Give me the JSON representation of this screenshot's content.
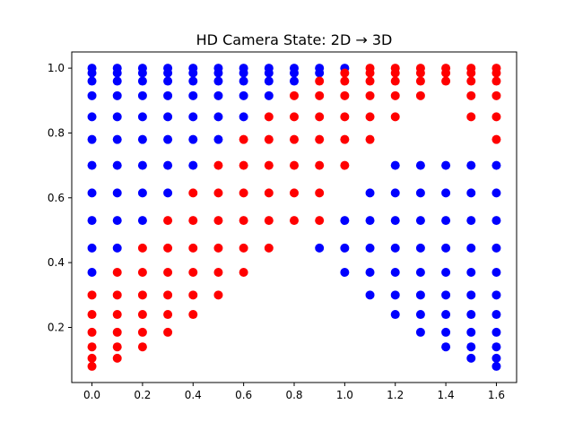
{
  "chart_data": {
    "type": "scatter",
    "title": "HD Camera State: 2D → 3D",
    "xlabel": "",
    "ylabel": "",
    "xlim": [
      -0.08,
      1.68
    ],
    "ylim": [
      0.03,
      1.05
    ],
    "grid": false,
    "xticks": [
      "0.0",
      "0.2",
      "0.4",
      "0.6",
      "0.8",
      "1.0",
      "1.2",
      "1.4",
      "1.6"
    ],
    "yticks": [
      "0.2",
      "0.4",
      "0.6",
      "0.8",
      "1.0"
    ],
    "colors": {
      "blue": "#0000ff",
      "red": "#ff0000"
    },
    "series": [
      {
        "color": "blue",
        "points": [
          [
            0.0,
            1.0
          ],
          [
            0.0,
            0.985
          ],
          [
            0.0,
            0.96
          ],
          [
            0.0,
            0.915
          ],
          [
            0.0,
            0.85
          ],
          [
            0.0,
            0.78
          ],
          [
            0.0,
            0.7
          ],
          [
            0.0,
            0.615
          ],
          [
            0.0,
            0.53
          ],
          [
            0.0,
            0.445
          ],
          [
            0.0,
            0.37
          ],
          [
            0.1,
            1.0
          ],
          [
            0.1,
            0.985
          ],
          [
            0.1,
            0.96
          ],
          [
            0.1,
            0.915
          ],
          [
            0.1,
            0.85
          ],
          [
            0.1,
            0.78
          ],
          [
            0.1,
            0.7
          ],
          [
            0.1,
            0.615
          ],
          [
            0.1,
            0.53
          ],
          [
            0.1,
            0.445
          ],
          [
            0.2,
            1.0
          ],
          [
            0.2,
            0.985
          ],
          [
            0.2,
            0.96
          ],
          [
            0.2,
            0.915
          ],
          [
            0.2,
            0.85
          ],
          [
            0.2,
            0.78
          ],
          [
            0.2,
            0.7
          ],
          [
            0.2,
            0.615
          ],
          [
            0.2,
            0.53
          ],
          [
            0.3,
            1.0
          ],
          [
            0.3,
            0.985
          ],
          [
            0.3,
            0.96
          ],
          [
            0.3,
            0.915
          ],
          [
            0.3,
            0.85
          ],
          [
            0.3,
            0.78
          ],
          [
            0.3,
            0.7
          ],
          [
            0.3,
            0.615
          ],
          [
            0.4,
            1.0
          ],
          [
            0.4,
            0.985
          ],
          [
            0.4,
            0.96
          ],
          [
            0.4,
            0.915
          ],
          [
            0.4,
            0.85
          ],
          [
            0.4,
            0.78
          ],
          [
            0.4,
            0.7
          ],
          [
            0.5,
            1.0
          ],
          [
            0.5,
            0.985
          ],
          [
            0.5,
            0.96
          ],
          [
            0.5,
            0.915
          ],
          [
            0.5,
            0.85
          ],
          [
            0.5,
            0.78
          ],
          [
            0.6,
            1.0
          ],
          [
            0.6,
            0.985
          ],
          [
            0.6,
            0.96
          ],
          [
            0.6,
            0.915
          ],
          [
            0.6,
            0.85
          ],
          [
            0.7,
            1.0
          ],
          [
            0.7,
            0.985
          ],
          [
            0.7,
            0.96
          ],
          [
            0.7,
            0.915
          ],
          [
            0.8,
            1.0
          ],
          [
            0.8,
            0.985
          ],
          [
            0.8,
            0.96
          ],
          [
            0.9,
            1.0
          ],
          [
            0.9,
            0.985
          ],
          [
            0.9,
            0.445
          ],
          [
            1.0,
            1.0
          ],
          [
            1.0,
            0.53
          ],
          [
            1.0,
            0.445
          ],
          [
            1.0,
            0.37
          ],
          [
            1.1,
            0.615
          ],
          [
            1.1,
            0.53
          ],
          [
            1.1,
            0.445
          ],
          [
            1.1,
            0.37
          ],
          [
            1.1,
            0.3
          ],
          [
            1.2,
            0.7
          ],
          [
            1.2,
            0.615
          ],
          [
            1.2,
            0.53
          ],
          [
            1.2,
            0.445
          ],
          [
            1.2,
            0.37
          ],
          [
            1.2,
            0.3
          ],
          [
            1.2,
            0.24
          ],
          [
            1.3,
            0.7
          ],
          [
            1.3,
            0.615
          ],
          [
            1.3,
            0.53
          ],
          [
            1.3,
            0.445
          ],
          [
            1.3,
            0.37
          ],
          [
            1.3,
            0.3
          ],
          [
            1.3,
            0.24
          ],
          [
            1.3,
            0.185
          ],
          [
            1.4,
            0.7
          ],
          [
            1.4,
            0.615
          ],
          [
            1.4,
            0.53
          ],
          [
            1.4,
            0.445
          ],
          [
            1.4,
            0.37
          ],
          [
            1.4,
            0.3
          ],
          [
            1.4,
            0.24
          ],
          [
            1.4,
            0.185
          ],
          [
            1.4,
            0.14
          ],
          [
            1.5,
            0.7
          ],
          [
            1.5,
            0.615
          ],
          [
            1.5,
            0.53
          ],
          [
            1.5,
            0.445
          ],
          [
            1.5,
            0.37
          ],
          [
            1.5,
            0.3
          ],
          [
            1.5,
            0.24
          ],
          [
            1.5,
            0.185
          ],
          [
            1.5,
            0.14
          ],
          [
            1.5,
            0.105
          ],
          [
            1.6,
            0.7
          ],
          [
            1.6,
            0.615
          ],
          [
            1.6,
            0.53
          ],
          [
            1.6,
            0.445
          ],
          [
            1.6,
            0.37
          ],
          [
            1.6,
            0.3
          ],
          [
            1.6,
            0.24
          ],
          [
            1.6,
            0.185
          ],
          [
            1.6,
            0.14
          ],
          [
            1.6,
            0.105
          ],
          [
            1.6,
            0.08
          ]
        ]
      },
      {
        "color": "red",
        "points": [
          [
            0.0,
            0.3
          ],
          [
            0.0,
            0.24
          ],
          [
            0.0,
            0.185
          ],
          [
            0.0,
            0.14
          ],
          [
            0.0,
            0.105
          ],
          [
            0.0,
            0.08
          ],
          [
            0.1,
            0.37
          ],
          [
            0.1,
            0.3
          ],
          [
            0.1,
            0.24
          ],
          [
            0.1,
            0.185
          ],
          [
            0.1,
            0.14
          ],
          [
            0.1,
            0.105
          ],
          [
            0.2,
            0.445
          ],
          [
            0.2,
            0.37
          ],
          [
            0.2,
            0.3
          ],
          [
            0.2,
            0.24
          ],
          [
            0.2,
            0.185
          ],
          [
            0.2,
            0.14
          ],
          [
            0.3,
            0.53
          ],
          [
            0.3,
            0.445
          ],
          [
            0.3,
            0.37
          ],
          [
            0.3,
            0.3
          ],
          [
            0.3,
            0.24
          ],
          [
            0.3,
            0.185
          ],
          [
            0.4,
            0.615
          ],
          [
            0.4,
            0.53
          ],
          [
            0.4,
            0.445
          ],
          [
            0.4,
            0.37
          ],
          [
            0.4,
            0.3
          ],
          [
            0.4,
            0.24
          ],
          [
            0.5,
            0.7
          ],
          [
            0.5,
            0.615
          ],
          [
            0.5,
            0.53
          ],
          [
            0.5,
            0.445
          ],
          [
            0.5,
            0.37
          ],
          [
            0.5,
            0.3
          ],
          [
            0.6,
            0.78
          ],
          [
            0.6,
            0.7
          ],
          [
            0.6,
            0.615
          ],
          [
            0.6,
            0.53
          ],
          [
            0.6,
            0.445
          ],
          [
            0.6,
            0.37
          ],
          [
            0.7,
            0.85
          ],
          [
            0.7,
            0.78
          ],
          [
            0.7,
            0.7
          ],
          [
            0.7,
            0.615
          ],
          [
            0.7,
            0.53
          ],
          [
            0.7,
            0.445
          ],
          [
            0.8,
            0.915
          ],
          [
            0.8,
            0.85
          ],
          [
            0.8,
            0.78
          ],
          [
            0.8,
            0.7
          ],
          [
            0.8,
            0.615
          ],
          [
            0.8,
            0.53
          ],
          [
            0.9,
            0.96
          ],
          [
            0.9,
            0.915
          ],
          [
            0.9,
            0.85
          ],
          [
            0.9,
            0.78
          ],
          [
            0.9,
            0.7
          ],
          [
            0.9,
            0.615
          ],
          [
            0.9,
            0.53
          ],
          [
            1.0,
            0.985
          ],
          [
            1.0,
            0.96
          ],
          [
            1.0,
            0.915
          ],
          [
            1.0,
            0.85
          ],
          [
            1.0,
            0.78
          ],
          [
            1.0,
            0.7
          ],
          [
            1.1,
            1.0
          ],
          [
            1.1,
            0.985
          ],
          [
            1.1,
            0.96
          ],
          [
            1.1,
            0.915
          ],
          [
            1.1,
            0.85
          ],
          [
            1.1,
            0.78
          ],
          [
            1.2,
            1.0
          ],
          [
            1.2,
            0.985
          ],
          [
            1.2,
            0.96
          ],
          [
            1.2,
            0.915
          ],
          [
            1.2,
            0.85
          ],
          [
            1.3,
            1.0
          ],
          [
            1.3,
            0.985
          ],
          [
            1.3,
            0.96
          ],
          [
            1.3,
            0.915
          ],
          [
            1.4,
            1.0
          ],
          [
            1.4,
            0.985
          ],
          [
            1.4,
            0.96
          ],
          [
            1.5,
            1.0
          ],
          [
            1.5,
            0.985
          ],
          [
            1.5,
            0.96
          ],
          [
            1.5,
            0.915
          ],
          [
            1.5,
            0.85
          ],
          [
            1.6,
            1.0
          ],
          [
            1.6,
            0.985
          ],
          [
            1.6,
            0.96
          ],
          [
            1.6,
            0.915
          ],
          [
            1.6,
            0.85
          ],
          [
            1.6,
            0.78
          ]
        ]
      }
    ]
  }
}
